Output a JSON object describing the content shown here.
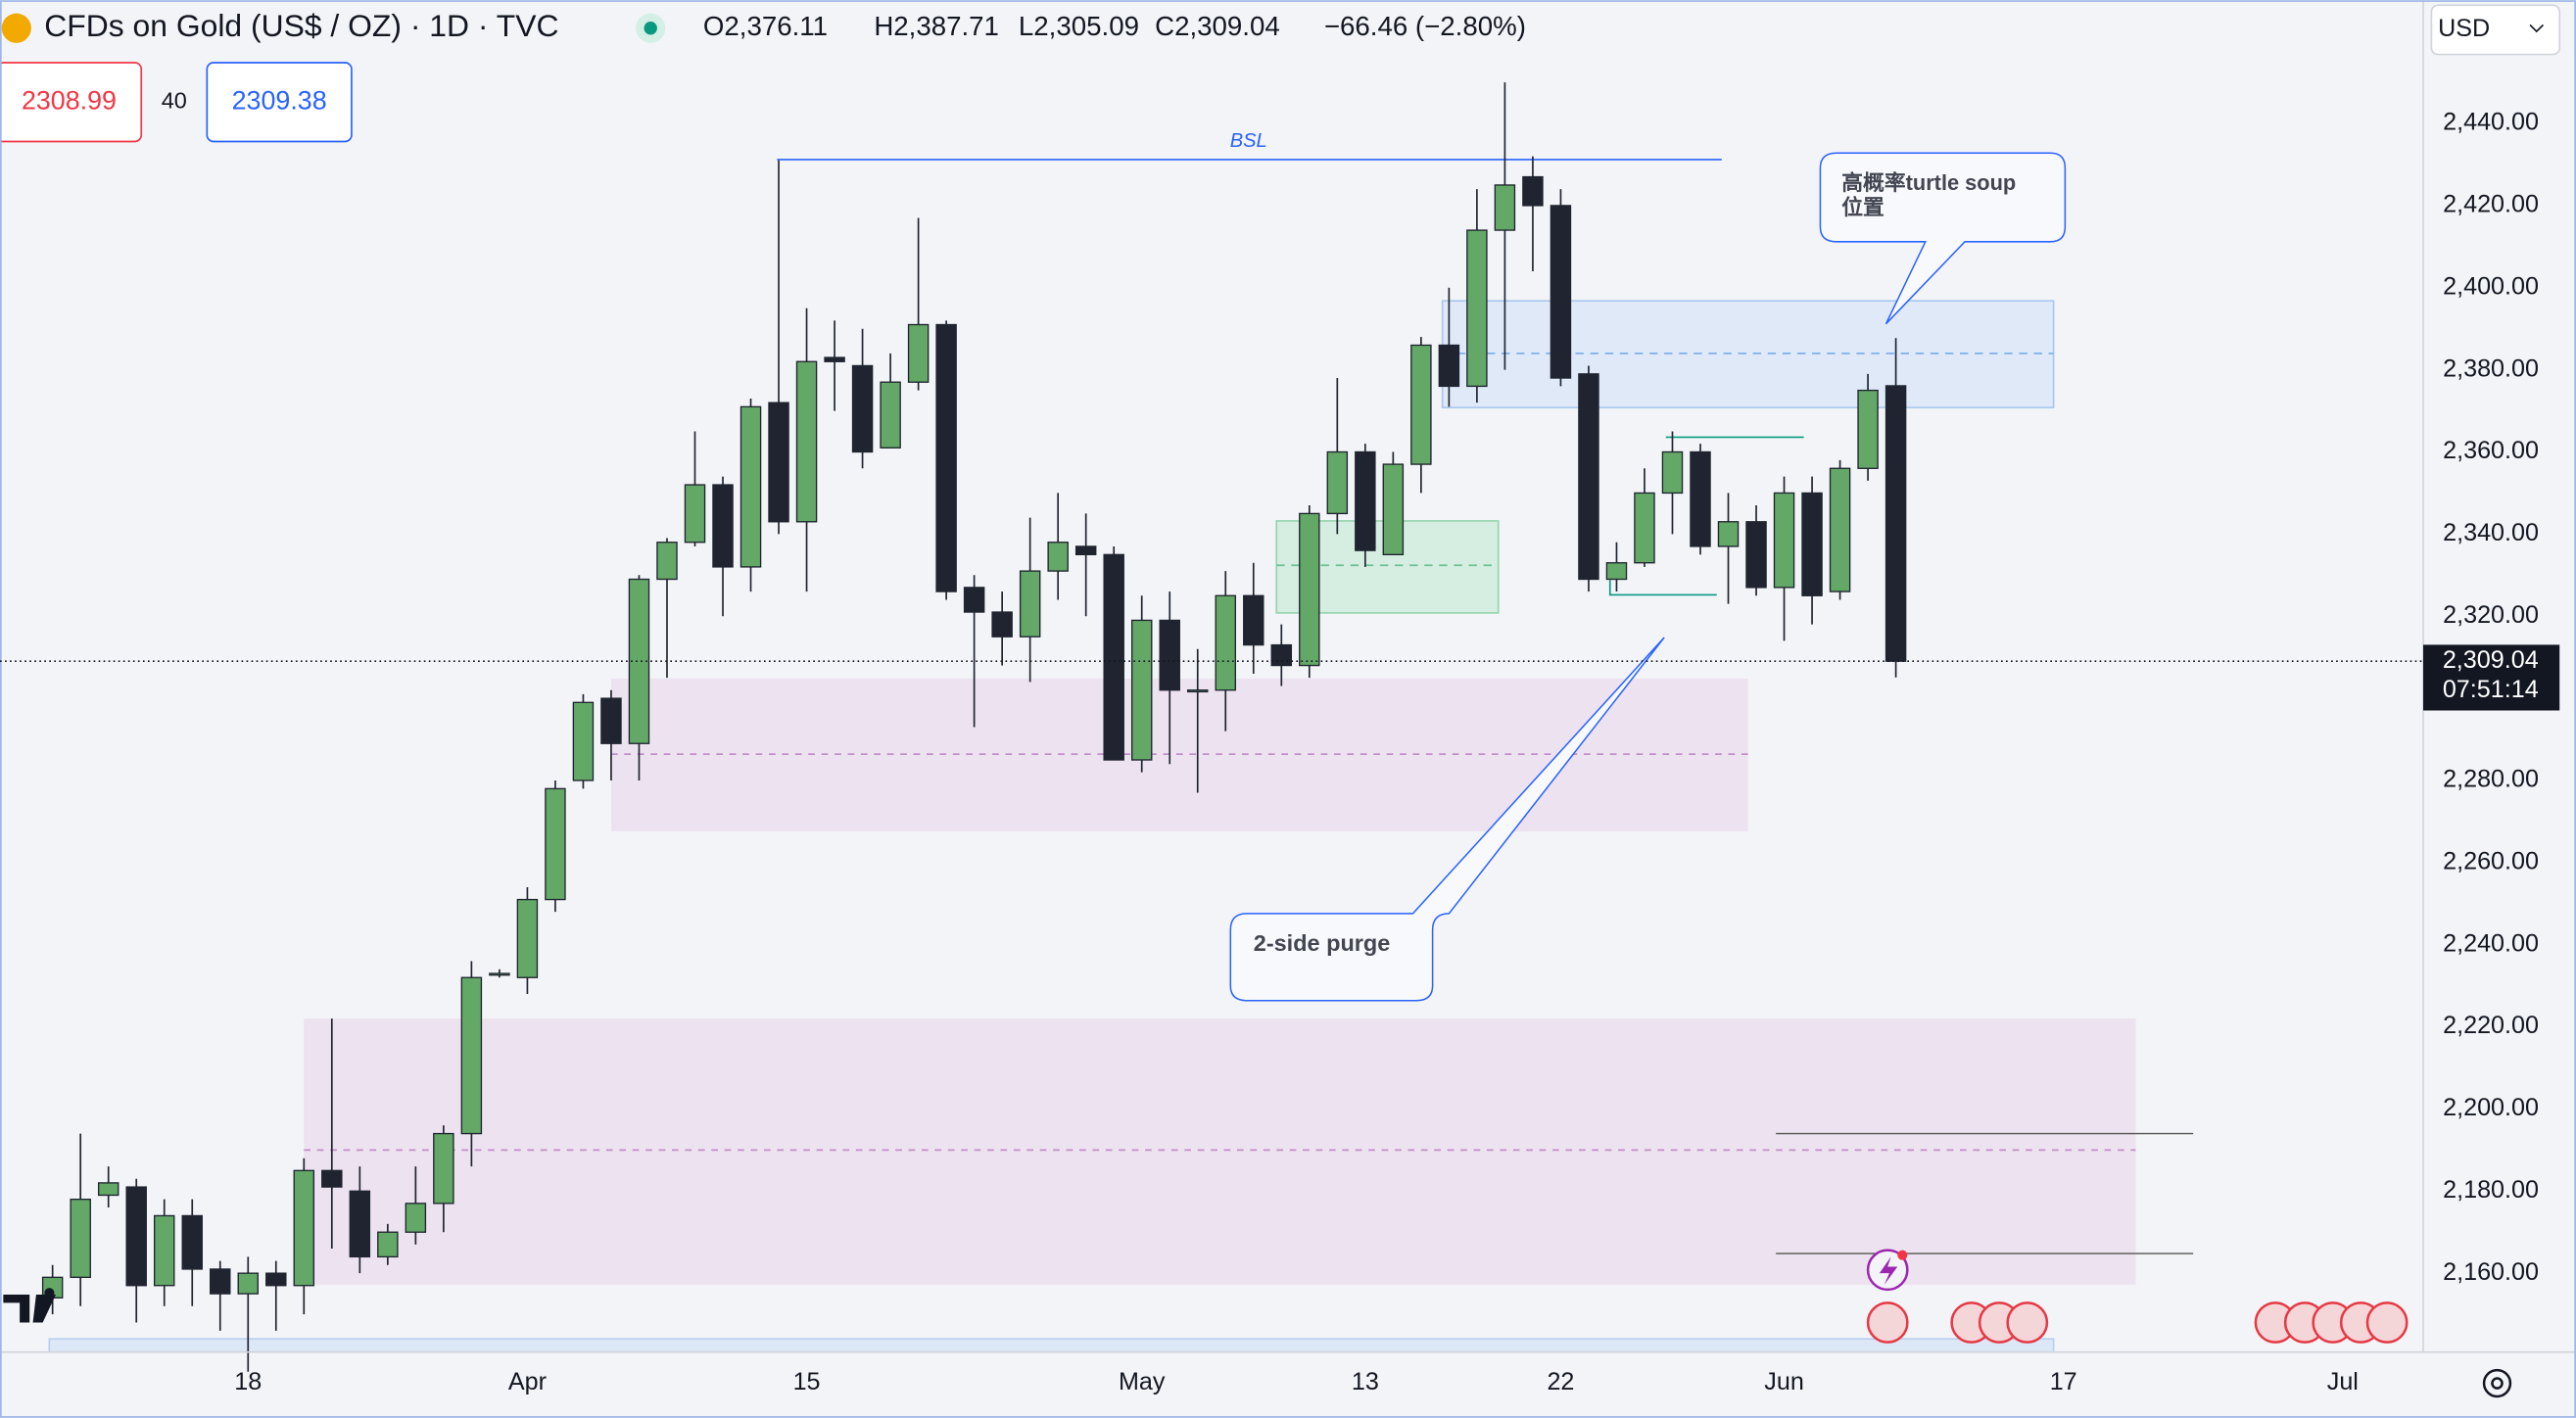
{
  "header": {
    "title": "CFDs on Gold (US$ / OZ) · 1D · TVC",
    "open": "O2,376.11",
    "high": "H2,387.71",
    "low": "L2,305.09",
    "close": "C2,309.04",
    "change": "−66.46 (−2.80%)",
    "sell": "2308.99",
    "spread": "40",
    "buy": "2309.38",
    "currency": "USD"
  },
  "annotations": {
    "bsl": "BSL",
    "turtle_line1": "高概率turtle soup",
    "turtle_line2": "位置",
    "purge": "2-side purge"
  },
  "price_label": {
    "price": "2,309.04",
    "countdown": "07:51:14"
  },
  "chart_data": {
    "type": "candlestick",
    "categories": [
      null,
      null,
      null,
      null,
      null,
      null,
      null,
      "18",
      null,
      null,
      null,
      null,
      null,
      null,
      null,
      null,
      null,
      "Apr",
      null,
      null,
      null,
      null,
      null,
      null,
      null,
      null,
      null,
      "15",
      null,
      null,
      null,
      null,
      null,
      null,
      null,
      null,
      null,
      null,
      null,
      "May",
      null,
      null,
      null,
      null,
      null,
      null,
      null,
      "13",
      null,
      null,
      null,
      null,
      null,
      null,
      "22",
      null,
      null,
      null,
      null,
      null,
      null,
      null,
      "Jun",
      null,
      null,
      null,
      null,
      null,
      null,
      null,
      null,
      null,
      "17",
      null,
      null,
      null,
      null,
      null,
      null,
      null,
      null,
      null,
      "Jul",
      null,
      null
    ],
    "open": [
      2154,
      2159,
      2179,
      2181,
      2157,
      2174,
      2161,
      2155,
      2160,
      2157,
      2185,
      2180,
      2164,
      2170,
      2177,
      2194,
      2233,
      2232,
      2251,
      2280,
      2300,
      2289,
      2329,
      2338,
      2352,
      2332,
      2372,
      2343,
      2383,
      2381,
      2361,
      2377,
      2391,
      2327,
      2321,
      2315,
      2331,
      2337,
      2335,
      2285,
      2319,
      2302,
      2302,
      2325,
      2313,
      2308,
      2345,
      2360,
      2335,
      2357,
      2386,
      2376,
      2414,
      2427,
      2420,
      2379,
      2329,
      2333,
      2350,
      2360,
      2337,
      2343,
      2327,
      2350,
      2326,
      2356,
      2376.11,
      null,
      null,
      null,
      null,
      null,
      null,
      null,
      null,
      null,
      null,
      null,
      null,
      null,
      null,
      null,
      null,
      null,
      null
    ],
    "high": [
      2162,
      2194,
      2186,
      2183,
      2178,
      2178,
      2163,
      2164,
      2163,
      2188,
      2222,
      2186,
      2172,
      2186,
      2196,
      2236,
      2234,
      2254,
      2280,
      2301,
      2302,
      2330,
      2339,
      2365,
      2354,
      2373,
      2431,
      2395,
      2392,
      2390,
      2384,
      2417,
      2392,
      2330,
      2326,
      2344,
      2350,
      2345,
      2337,
      2325,
      2326,
      2312,
      2331,
      2333,
      2318,
      2347,
      2378,
      2362,
      2360,
      2388,
      2400,
      2424,
      2450,
      2432,
      2424,
      2381,
      2338,
      2356,
      2365,
      2362,
      2350,
      2347,
      2354,
      2354,
      2358,
      2379,
      2387.71,
      null,
      null,
      null,
      null,
      null,
      null,
      null,
      null,
      null,
      null,
      null,
      null,
      null,
      null,
      null,
      null,
      null,
      null
    ],
    "low": [
      2150,
      2152,
      2176,
      2148,
      2152,
      2152,
      2146,
      2136,
      2146,
      2150,
      2166,
      2160,
      2162,
      2167,
      2170,
      2186,
      2232,
      2228,
      2248,
      2278,
      2280,
      2280,
      2305,
      2337,
      2320,
      2326,
      2340,
      2326,
      2370,
      2356,
      2361,
      2375,
      2324,
      2293,
      2308,
      2304,
      2324,
      2320,
      2285,
      2282,
      2284,
      2277,
      2292,
      2306,
      2303,
      2305,
      2340,
      2332,
      2335,
      2350,
      2371,
      2372,
      2380,
      2404,
      2376,
      2326,
      2326,
      2332,
      2340,
      2335,
      2323,
      2325,
      2314,
      2318,
      2324,
      2353,
      2305.09,
      null,
      null,
      null,
      null,
      null,
      null,
      null,
      null,
      null,
      null,
      null,
      null,
      null,
      null,
      null,
      null,
      null,
      null
    ],
    "close": [
      2159,
      2178,
      2182,
      2157,
      2174,
      2161,
      2155,
      2160,
      2157,
      2185,
      2181,
      2164,
      2170,
      2177,
      2194,
      2232,
      2233,
      2251,
      2278,
      2299,
      2289,
      2329,
      2338,
      2352,
      2332,
      2371,
      2343,
      2382,
      2382,
      2360,
      2377,
      2391,
      2326,
      2321,
      2315,
      2331,
      2338,
      2335,
      2285,
      2319,
      2302,
      2302,
      2325,
      2313,
      2308,
      2345,
      2360,
      2336,
      2357,
      2386,
      2376,
      2414,
      2425,
      2420,
      2378,
      2329,
      2333,
      2350,
      2360,
      2337,
      2343,
      2327,
      2350,
      2325,
      2356,
      2375,
      2309.04,
      null,
      null,
      null,
      null,
      null,
      null,
      null,
      null,
      null,
      null,
      null,
      null,
      null,
      null,
      null,
      null,
      null,
      null
    ],
    "up_color": "#63a867",
    "down_color": "#1f2430",
    "ylim": [
      2140.8,
      2470
    ],
    "yticks": [
      {
        "value": 2160,
        "label": "2,160.00"
      },
      {
        "value": 2180,
        "label": "2,180.00"
      },
      {
        "value": 2200,
        "label": "2,200.00"
      },
      {
        "value": 2220,
        "label": "2,220.00"
      },
      {
        "value": 2240,
        "label": "2,240.00"
      },
      {
        "value": 2260,
        "label": "2,260.00"
      },
      {
        "value": 2280,
        "label": "2,280.00"
      },
      {
        "value": 2300,
        "label": "2,300.00"
      },
      {
        "value": 2320,
        "label": "2,320.00"
      },
      {
        "value": 2340,
        "label": "2,340.00"
      },
      {
        "value": 2360,
        "label": "2,360.00"
      },
      {
        "value": 2380,
        "label": "2,380.00"
      },
      {
        "value": 2400,
        "label": "2,400.00"
      },
      {
        "value": 2420,
        "label": "2,420.00"
      },
      {
        "value": 2440,
        "label": "2,440.00"
      }
    ]
  }
}
